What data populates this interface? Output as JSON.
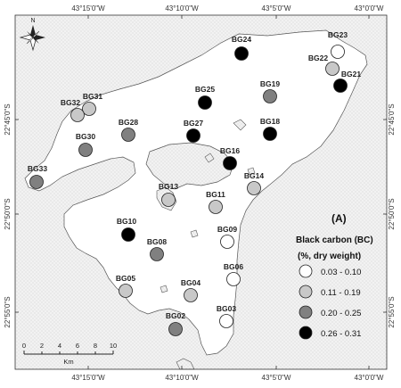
{
  "panel_label": "(A)",
  "legend": {
    "title": "Black carbon (BC)",
    "subtitle": "(%, dry weight)",
    "classes": [
      {
        "label": "0.03 - 0.10",
        "color": "#ffffff"
      },
      {
        "label": "0.11 - 0.19",
        "color": "#c8c8c8"
      },
      {
        "label": "0.20 - 0.25",
        "color": "#808080"
      },
      {
        "label": "0.26 - 0.31",
        "color": "#000000"
      }
    ]
  },
  "coordinates": {
    "top": [
      "43°15'0\"W",
      "43°10'0\"W",
      "43°5'0\"W",
      "43°0'0\"W"
    ],
    "bottom": [
      "43°15'0\"W",
      "43°10'0\"W",
      "43°5'0\"W",
      "43°0'0\"W"
    ],
    "left": [
      "22°45'0\"S",
      "22°50'0\"S",
      "22°55'0\"S"
    ],
    "right": [
      "22°45'0\"S",
      "22°50'0\"S",
      "22°55'0\"S"
    ]
  },
  "scale_bar": {
    "ticks": [
      "0",
      "2",
      "4",
      "6",
      "8",
      "10"
    ],
    "unit": "Km"
  },
  "north_arrow": {
    "label": "N"
  },
  "stations": [
    {
      "name": "BG23",
      "class": 0
    },
    {
      "name": "BG22",
      "class": 1
    },
    {
      "name": "BG21",
      "class": 3
    },
    {
      "name": "BG24",
      "class": 3
    },
    {
      "name": "BG19",
      "class": 2
    },
    {
      "name": "BG25",
      "class": 3
    },
    {
      "name": "BG18",
      "class": 3
    },
    {
      "name": "BG27",
      "class": 3
    },
    {
      "name": "BG31",
      "class": 1
    },
    {
      "name": "BG32",
      "class": 1
    },
    {
      "name": "BG28",
      "class": 2
    },
    {
      "name": "BG30",
      "class": 2
    },
    {
      "name": "BG16",
      "class": 3
    },
    {
      "name": "BG33",
      "class": 2
    },
    {
      "name": "BG14",
      "class": 1
    },
    {
      "name": "BG13",
      "class": 1
    },
    {
      "name": "BG11",
      "class": 1
    },
    {
      "name": "BG10",
      "class": 3
    },
    {
      "name": "BG09",
      "class": 0
    },
    {
      "name": "BG08",
      "class": 2
    },
    {
      "name": "BG06",
      "class": 0
    },
    {
      "name": "BG05",
      "class": 1
    },
    {
      "name": "BG04",
      "class": 1
    },
    {
      "name": "BG03",
      "class": 0
    },
    {
      "name": "BG02",
      "class": 2
    }
  ]
}
